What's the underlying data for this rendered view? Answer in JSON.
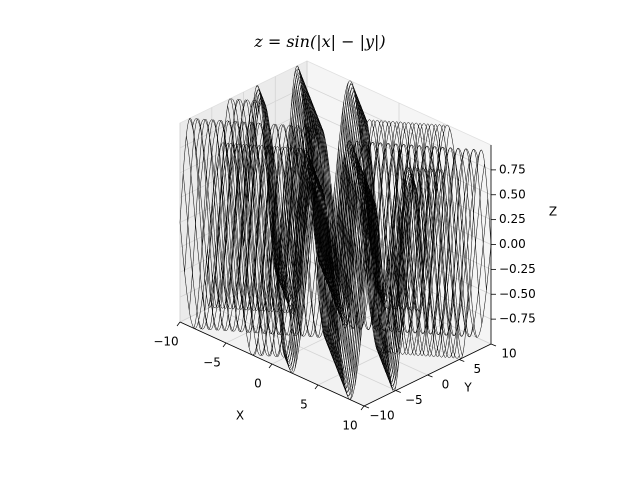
{
  "chart_data": {
    "type": "surface-wireframe",
    "title": "z = sin(|x| − |y|)",
    "function": "sin(|x| - |y|)",
    "xlabel": "X",
    "ylabel": "Y",
    "zlabel": "Z",
    "xlim": [
      -10,
      10
    ],
    "ylim": [
      -10,
      10
    ],
    "zlim": [
      -1,
      1
    ],
    "x_ticks": [
      -10,
      -5,
      0,
      5,
      10
    ],
    "y_ticks": [
      -10,
      -5,
      0,
      5,
      10
    ],
    "z_ticks": [
      -0.75,
      -0.5,
      -0.25,
      0.0,
      0.25,
      0.5,
      0.75
    ],
    "x_tick_labels": [
      "−10",
      "−5",
      "0",
      "5",
      "10"
    ],
    "y_tick_labels": [
      "−10",
      "−5",
      "0",
      "5",
      "10"
    ],
    "z_tick_labels": [
      "−0.75",
      "−0.50",
      "−0.25",
      "0.00",
      "0.25",
      "0.50",
      "0.75"
    ],
    "line_color": "#000000",
    "pane_color": "#f2f2f2",
    "grid": true
  }
}
